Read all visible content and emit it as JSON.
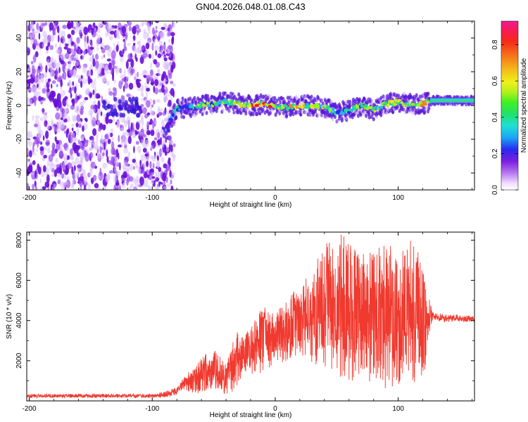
{
  "figure_title": "GN04.2026.048.01.08.C43",
  "colorbar": {
    "label": "Normalized spectral amplitude",
    "ticks": [
      "0.0",
      "0.2",
      "0.4",
      "0.6",
      "0.8"
    ],
    "tick_values": [
      0.0,
      0.2,
      0.4,
      0.6,
      0.8
    ],
    "range": [
      0.0,
      0.93
    ]
  },
  "colors": {
    "snr_line": "#f03a2f",
    "spectro_low": "#7b1fe0",
    "spectro_mid": "#2ec4f0",
    "spectro_high": "#ff2020",
    "axis": "#000000"
  },
  "chart_data": [
    {
      "type": "heatmap",
      "title": "GN04.2026.048.01.08.C43",
      "xlabel": "Height of straight line (km)",
      "ylabel": "Frequency (Hz)",
      "xlim": [
        -202,
        162
      ],
      "ylim": [
        -50,
        50
      ],
      "xticks": [
        -200,
        -100,
        0,
        100
      ],
      "xtick_labels": [
        "-200",
        "-100",
        "0",
        "100"
      ],
      "yticks": [
        -40,
        -20,
        0,
        20,
        40
      ],
      "ytick_labels": [
        "-40",
        "-20",
        "0",
        "20",
        "40"
      ],
      "noise_region_x": [
        -202,
        -82
      ],
      "ridge": {
        "x": [
          -90,
          -80,
          -70,
          -60,
          -50,
          -40,
          -30,
          -20,
          -10,
          0,
          10,
          20,
          30,
          40,
          50,
          60,
          70,
          80,
          90,
          100,
          110,
          120,
          130,
          140,
          150,
          162
        ],
        "freq": [
          -15,
          -2,
          -1,
          0,
          1,
          2,
          1,
          0,
          1,
          -1,
          -1,
          0,
          0,
          -1,
          -4,
          -3,
          0,
          -3,
          1,
          2,
          1,
          1,
          3,
          3,
          3,
          3
        ],
        "amplitude": [
          0.3,
          0.45,
          0.4,
          0.5,
          0.55,
          0.5,
          0.7,
          0.9,
          0.85,
          0.75,
          0.7,
          0.65,
          0.6,
          0.55,
          0.45,
          0.5,
          0.55,
          0.55,
          0.65,
          0.6,
          0.55,
          0.75,
          0.45,
          0.45,
          0.45,
          0.45
        ]
      }
    },
    {
      "type": "line",
      "xlabel": "Height of straight line (km)",
      "ylabel": "SNR (10 * v/v)",
      "xlim": [
        -202,
        162
      ],
      "ylim": [
        0,
        8400
      ],
      "xticks": [
        -200,
        -100,
        0,
        100
      ],
      "xtick_labels": [
        "-200",
        "-100",
        "0",
        "100"
      ],
      "yticks": [
        2000,
        4000,
        6000,
        8000
      ],
      "ytick_labels": [
        "2000",
        "4000",
        "6000",
        "8000"
      ],
      "series": [
        {
          "name": "SNR envelope",
          "x": [
            -202,
            -180,
            -150,
            -120,
            -100,
            -90,
            -80,
            -75,
            -70,
            -60,
            -50,
            -40,
            -35,
            -30,
            -25,
            -20,
            -10,
            0,
            10,
            20,
            30,
            40,
            50,
            60,
            70,
            80,
            90,
            100,
            110,
            120,
            128,
            130,
            140,
            150,
            162
          ],
          "low": [
            150,
            150,
            150,
            150,
            150,
            150,
            300,
            600,
            300,
            400,
            500,
            300,
            200,
            800,
            1400,
            1200,
            1400,
            1800,
            2000,
            2400,
            1800,
            1600,
            1200,
            1000,
            800,
            600,
            600,
            700,
            800,
            900,
            4000,
            4000,
            3900,
            3950,
            3900
          ],
          "high": [
            350,
            350,
            350,
            350,
            350,
            450,
            700,
            1100,
            1500,
            2200,
            2600,
            1800,
            3000,
            3700,
            3300,
            3700,
            4800,
            4300,
            5200,
            5700,
            6500,
            7800,
            8300,
            8300,
            7500,
            7400,
            8000,
            7200,
            8300,
            6900,
            4400,
            4400,
            4300,
            4300,
            4200
          ]
        }
      ]
    }
  ]
}
